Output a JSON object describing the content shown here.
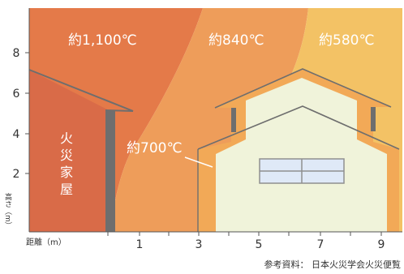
{
  "zones": [
    {
      "label": "約1,100℃",
      "color": "#e47a49"
    },
    {
      "label": "約840℃",
      "color": "#ee9d5a"
    },
    {
      "label": "約580℃",
      "color": "#f3c265"
    }
  ],
  "callout": {
    "label": "約700℃"
  },
  "burning_house": {
    "label_chars": [
      "火",
      "災",
      "家",
      "屋"
    ],
    "color": "#d96b48"
  },
  "neighbor_house": {
    "wall_color": "#f0f3da",
    "trim_color": "#f2a957"
  },
  "y_axis": {
    "label": "高さ（m）",
    "ticks": [
      "2",
      "4",
      "6",
      "8"
    ]
  },
  "x_axis": {
    "label": "距離（m）",
    "ticks": [
      "1",
      "3",
      "5",
      "7",
      "9"
    ]
  },
  "source": "参考資料： 日本火災学会火災便覧"
}
